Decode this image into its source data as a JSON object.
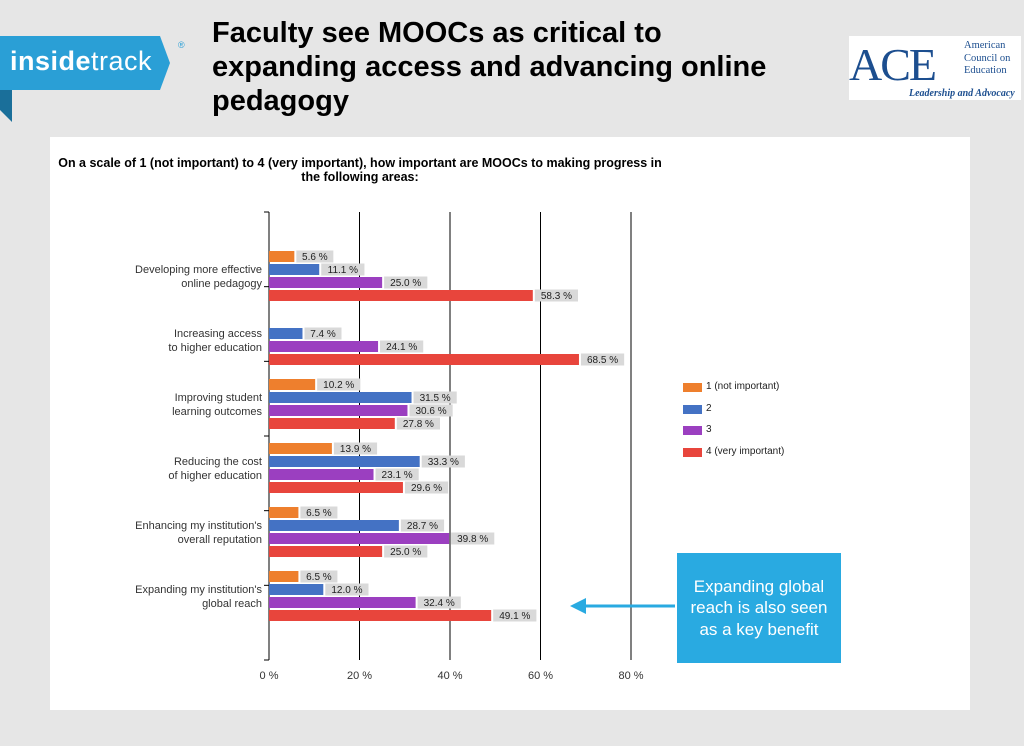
{
  "header": {
    "title": "Faculty see MOOCs as critical to expanding access and advancing online pedagogy",
    "logo_left_bold": "inside",
    "logo_left_thin": "track",
    "logo_left_mark": "®"
  },
  "ace_logo": {
    "letters": "ACE",
    "line1": "American",
    "line2": "Council on",
    "line3": "Education",
    "tagline": "Leadership and Advocacy"
  },
  "callout": {
    "text": "Expanding global reach is also seen as a key benefit"
  },
  "colors": {
    "series1": "#ee7f2d",
    "series2": "#4472c4",
    "series3": "#9b3fc0",
    "series4": "#e8453c",
    "callout": "#29aae1",
    "label_bg": "#d9d9d9"
  },
  "chart_data": {
    "type": "bar",
    "orientation": "horizontal",
    "title": "On a scale of 1 (not important) to 4 (very important), how important are MOOCs to making progress in the following areas:",
    "categories": [
      "Developing more effective online pedagogy",
      "Increasing access to higher education",
      "Improving student learning outcomes",
      "Reducing the cost of higher education",
      "Enhancing my institution's overall reputation",
      "Expanding my institution's global reach"
    ],
    "category_lines": [
      [
        "Developing more effective",
        "online pedagogy"
      ],
      [
        "Increasing access",
        "to higher education"
      ],
      [
        "Improving student",
        "learning outcomes"
      ],
      [
        "Reducing the cost",
        "of higher education"
      ],
      [
        "Enhancing my institution's",
        "overall reputation"
      ],
      [
        "Expanding my institution's",
        "global reach"
      ]
    ],
    "series": [
      {
        "name": "1 (not important)",
        "values": [
          5.6,
          0,
          10.2,
          13.9,
          6.5,
          6.5
        ],
        "labels": [
          "5.6 %",
          "",
          "10.2 %",
          "13.9 %",
          "6.5 %",
          "6.5 %"
        ]
      },
      {
        "name": "2",
        "values": [
          11.1,
          7.4,
          31.5,
          33.3,
          28.7,
          12.0
        ],
        "labels": [
          "11.1 %",
          "7.4 %",
          "31.5 %",
          "33.3 %",
          "28.7 %",
          "12.0 %"
        ]
      },
      {
        "name": "3",
        "values": [
          25.0,
          24.1,
          30.6,
          23.1,
          39.8,
          32.4
        ],
        "labels": [
          "25.0 %",
          "24.1 %",
          "30.6 %",
          "23.1 %",
          "39.8 %",
          "32.4 %"
        ]
      },
      {
        "name": "4 (very important)",
        "values": [
          58.3,
          68.5,
          27.8,
          29.6,
          25.0,
          49.1
        ],
        "labels": [
          "58.3 %",
          "68.5 %",
          "27.8 %",
          "29.6 %",
          "25.0 %",
          "49.1 %"
        ]
      }
    ],
    "xlim": [
      0,
      80
    ],
    "xticks": [
      0,
      20,
      40,
      60,
      80
    ],
    "xtick_labels": [
      "0 %",
      "20 %",
      "40 %",
      "60 %",
      "80 %"
    ],
    "grid": true,
    "legend": "right"
  }
}
